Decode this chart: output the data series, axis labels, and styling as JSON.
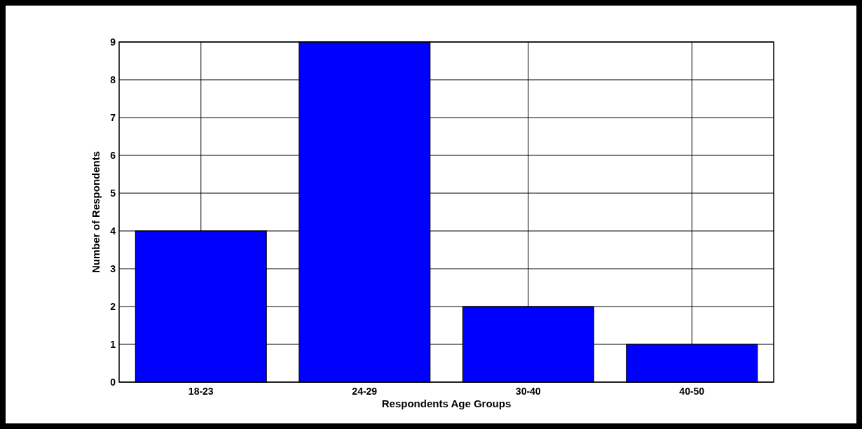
{
  "chart_data": {
    "type": "bar",
    "xlabel": "Respondents Age Groups",
    "ylabel": "Number of Respondents",
    "categories": [
      "18-23",
      "24-29",
      "30-40",
      "40-50"
    ],
    "values": [
      4,
      9,
      2,
      1
    ],
    "color": "#0000ff",
    "ylim": [
      0,
      9
    ],
    "yticks": [
      0,
      1,
      2,
      3,
      4,
      5,
      6,
      7,
      8,
      9
    ],
    "grid": true
  }
}
